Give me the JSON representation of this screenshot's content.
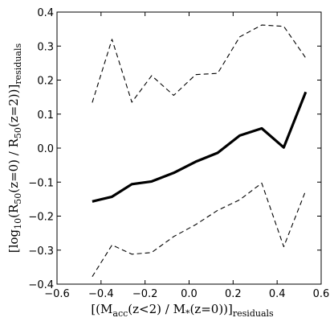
{
  "chart_data": {
    "type": "line",
    "xlabel_parts": {
      "open": "[(M",
      "acc_sub": "acc",
      "mid": "(z<2) / M",
      "star_sub": "*",
      "close": "(z=0))]",
      "residuals_sub": "residuals"
    },
    "ylabel_parts": {
      "open": "[log",
      "log_sub": "10",
      "r1": "(R",
      "r1_sub": "50",
      "mid": "(z=0) / R",
      "r2_sub": "50",
      "close": "(z=2))]",
      "residuals_sub": "residuals"
    },
    "xlim": [
      -0.6,
      0.6
    ],
    "ylim": [
      -0.4,
      0.4
    ],
    "xticks": [
      -0.6,
      -0.4,
      -0.2,
      0.0,
      0.2,
      0.4,
      0.6
    ],
    "xtick_labels": [
      "−0.6",
      "−0.4",
      "−0.2",
      "0.0",
      "0.2",
      "0.4",
      "0.6"
    ],
    "yticks": [
      -0.4,
      -0.3,
      -0.2,
      -0.1,
      0.0,
      0.1,
      0.2,
      0.3,
      0.4
    ],
    "ytick_labels": [
      "−0.4",
      "−0.3",
      "−0.2",
      "−0.1",
      "0.0",
      "0.1",
      "0.2",
      "0.3",
      "0.4"
    ],
    "grid": false,
    "x": [
      -0.44,
      -0.35,
      -0.26,
      -0.17,
      -0.07,
      0.03,
      0.13,
      0.23,
      0.33,
      0.43,
      0.53
    ],
    "series": [
      {
        "style": "solid-thick",
        "values": [
          -0.157,
          -0.143,
          -0.106,
          -0.098,
          -0.073,
          -0.04,
          -0.014,
          0.037,
          0.058,
          0.002,
          0.165
        ]
      },
      {
        "style": "dashed",
        "values": [
          0.134,
          0.32,
          0.135,
          0.213,
          0.155,
          0.216,
          0.22,
          0.327,
          0.362,
          0.358,
          0.265
        ]
      },
      {
        "style": "dashed",
        "values": [
          -0.378,
          -0.285,
          -0.312,
          -0.307,
          -0.26,
          -0.225,
          -0.183,
          -0.152,
          -0.103,
          -0.29,
          -0.125
        ]
      }
    ]
  }
}
